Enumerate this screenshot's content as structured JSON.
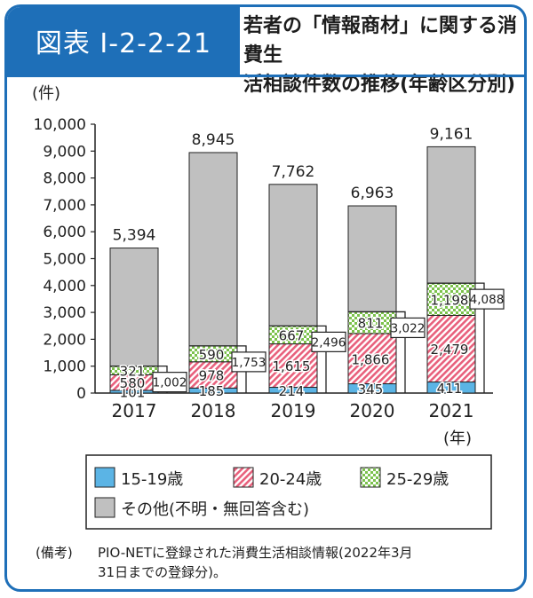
{
  "header": {
    "figure_label": "図表 I-2-2-21",
    "title_line1": "若者の「情報商材」に関する消費生",
    "title_line2": "活相談件数の推移(年齢区分別)"
  },
  "chart_data": {
    "type": "bar",
    "stacked": true,
    "ylabel": "(件)",
    "xlabel": "(年)",
    "ylim": [
      0,
      10000
    ],
    "yticks": [
      0,
      1000,
      2000,
      3000,
      4000,
      5000,
      6000,
      7000,
      8000,
      9000,
      10000
    ],
    "ytick_labels": [
      "0",
      "1,000",
      "2,000",
      "3,000",
      "4,000",
      "5,000",
      "6,000",
      "7,000",
      "8,000",
      "9,000",
      "10,000"
    ],
    "categories": [
      "2017",
      "2018",
      "2019",
      "2020",
      "2021"
    ],
    "series": [
      {
        "name": "15-19歳",
        "values": [
          101,
          185,
          214,
          345,
          411
        ],
        "labels": [
          "101",
          "185",
          "214",
          "345",
          "411"
        ],
        "color": "#5bb4e5",
        "pattern": "solid"
      },
      {
        "name": "20-24歳",
        "values": [
          580,
          978,
          1615,
          1866,
          2479
        ],
        "labels": [
          "580",
          "978",
          "1,615",
          "1,866",
          "2,479"
        ],
        "color": "#e8607c",
        "pattern": "stripe"
      },
      {
        "name": "25-29歳",
        "values": [
          321,
          590,
          667,
          811,
          1198
        ],
        "labels": [
          "321",
          "590",
          "667",
          "811",
          "1,198"
        ],
        "color": "#7cc24d",
        "pattern": "check"
      },
      {
        "name": "その他(不明・無回答含む)",
        "values": [
          4392,
          7192,
          5266,
          3941,
          5073
        ],
        "color": "#c0c0c0",
        "pattern": "solid"
      }
    ],
    "totals": [
      "5,394",
      "8,945",
      "7,762",
      "6,963",
      "9,161"
    ],
    "subtotals_15_29": [
      "1,002",
      "1,753",
      "2,496",
      "3,022",
      "4,088"
    ],
    "legend_position": "bottom",
    "grid": false
  },
  "legend": {
    "item1": "15-19歳",
    "item2": "20-24歳",
    "item3": "25-29歳",
    "item4": "その他(不明・無回答含む)"
  },
  "notes": {
    "label": "(備考)",
    "line1": "PIO-NETに登録された消費生活相談情報(2022年3月",
    "line2": "31日までの登録分)。"
  }
}
